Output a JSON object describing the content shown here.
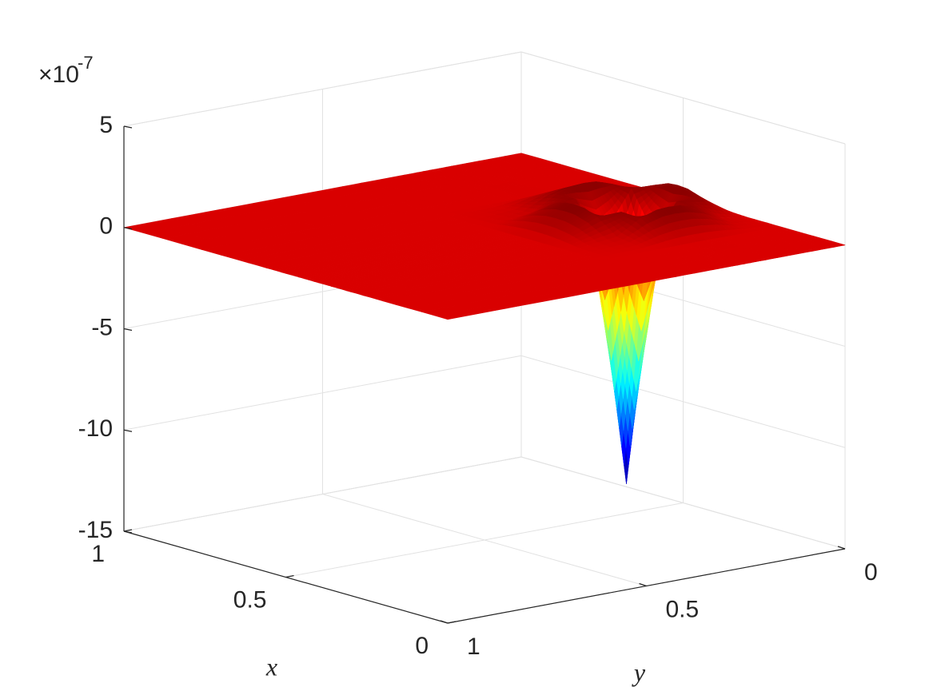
{
  "chart_data": {
    "type": "surface",
    "x": [
      0,
      0.2,
      0.3,
      0.36,
      0.4,
      0.43,
      0.46,
      0.5,
      0.56,
      0.7,
      1
    ],
    "y": [
      0,
      0.07,
      0.13,
      0.17,
      0.2,
      0.23,
      0.27,
      0.33,
      0.45,
      0.7,
      1
    ],
    "z": [
      [
        0,
        0,
        0,
        0.04,
        0.09,
        0.1,
        0.09,
        0.04,
        0,
        0,
        0
      ],
      [
        0,
        0,
        0.25,
        0.95,
        1.21,
        1.25,
        1.21,
        0.95,
        0.25,
        0,
        0
      ],
      [
        0,
        0,
        0.95,
        0.99,
        -0.15,
        -0.68,
        -0.15,
        0.99,
        0.95,
        0,
        0
      ],
      [
        0,
        0.01,
        1.21,
        -0.15,
        -5.23,
        -8.29,
        -5.23,
        -0.15,
        1.21,
        0.01,
        0
      ],
      [
        0,
        0.01,
        1.25,
        -0.68,
        -8.29,
        -13,
        -8.29,
        -0.68,
        1.25,
        0.01,
        0
      ],
      [
        0,
        0.01,
        1.21,
        -0.15,
        -5.23,
        -8.29,
        -5.23,
        -0.15,
        1.21,
        0.01,
        0
      ],
      [
        0,
        0,
        0.95,
        0.99,
        -0.15,
        -0.68,
        -0.15,
        0.99,
        0.95,
        0,
        0
      ],
      [
        0,
        0,
        0.25,
        0.95,
        1.21,
        1.25,
        1.21,
        0.95,
        0.25,
        0,
        0
      ],
      [
        0,
        0,
        0,
        0,
        0,
        0,
        0,
        0,
        0,
        0,
        0
      ],
      [
        0,
        0,
        0,
        0,
        0,
        0,
        0,
        0,
        0,
        0,
        0
      ],
      [
        0,
        0,
        0,
        0,
        0,
        0,
        0,
        0,
        0,
        0,
        0
      ]
    ],
    "colormap": "jet",
    "xlabel": "x",
    "ylabel": "y",
    "xlim": [
      0,
      1
    ],
    "ylim": [
      0,
      1
    ],
    "zlim": [
      -15,
      5
    ],
    "xticks": [
      0,
      0.5,
      1
    ],
    "yticks": [
      0,
      0.5,
      1
    ],
    "zticks": [
      -15,
      -10,
      -5,
      0,
      5
    ],
    "z_multiplier": {
      "base": "×10",
      "exponent": "-7"
    },
    "grid": true
  }
}
